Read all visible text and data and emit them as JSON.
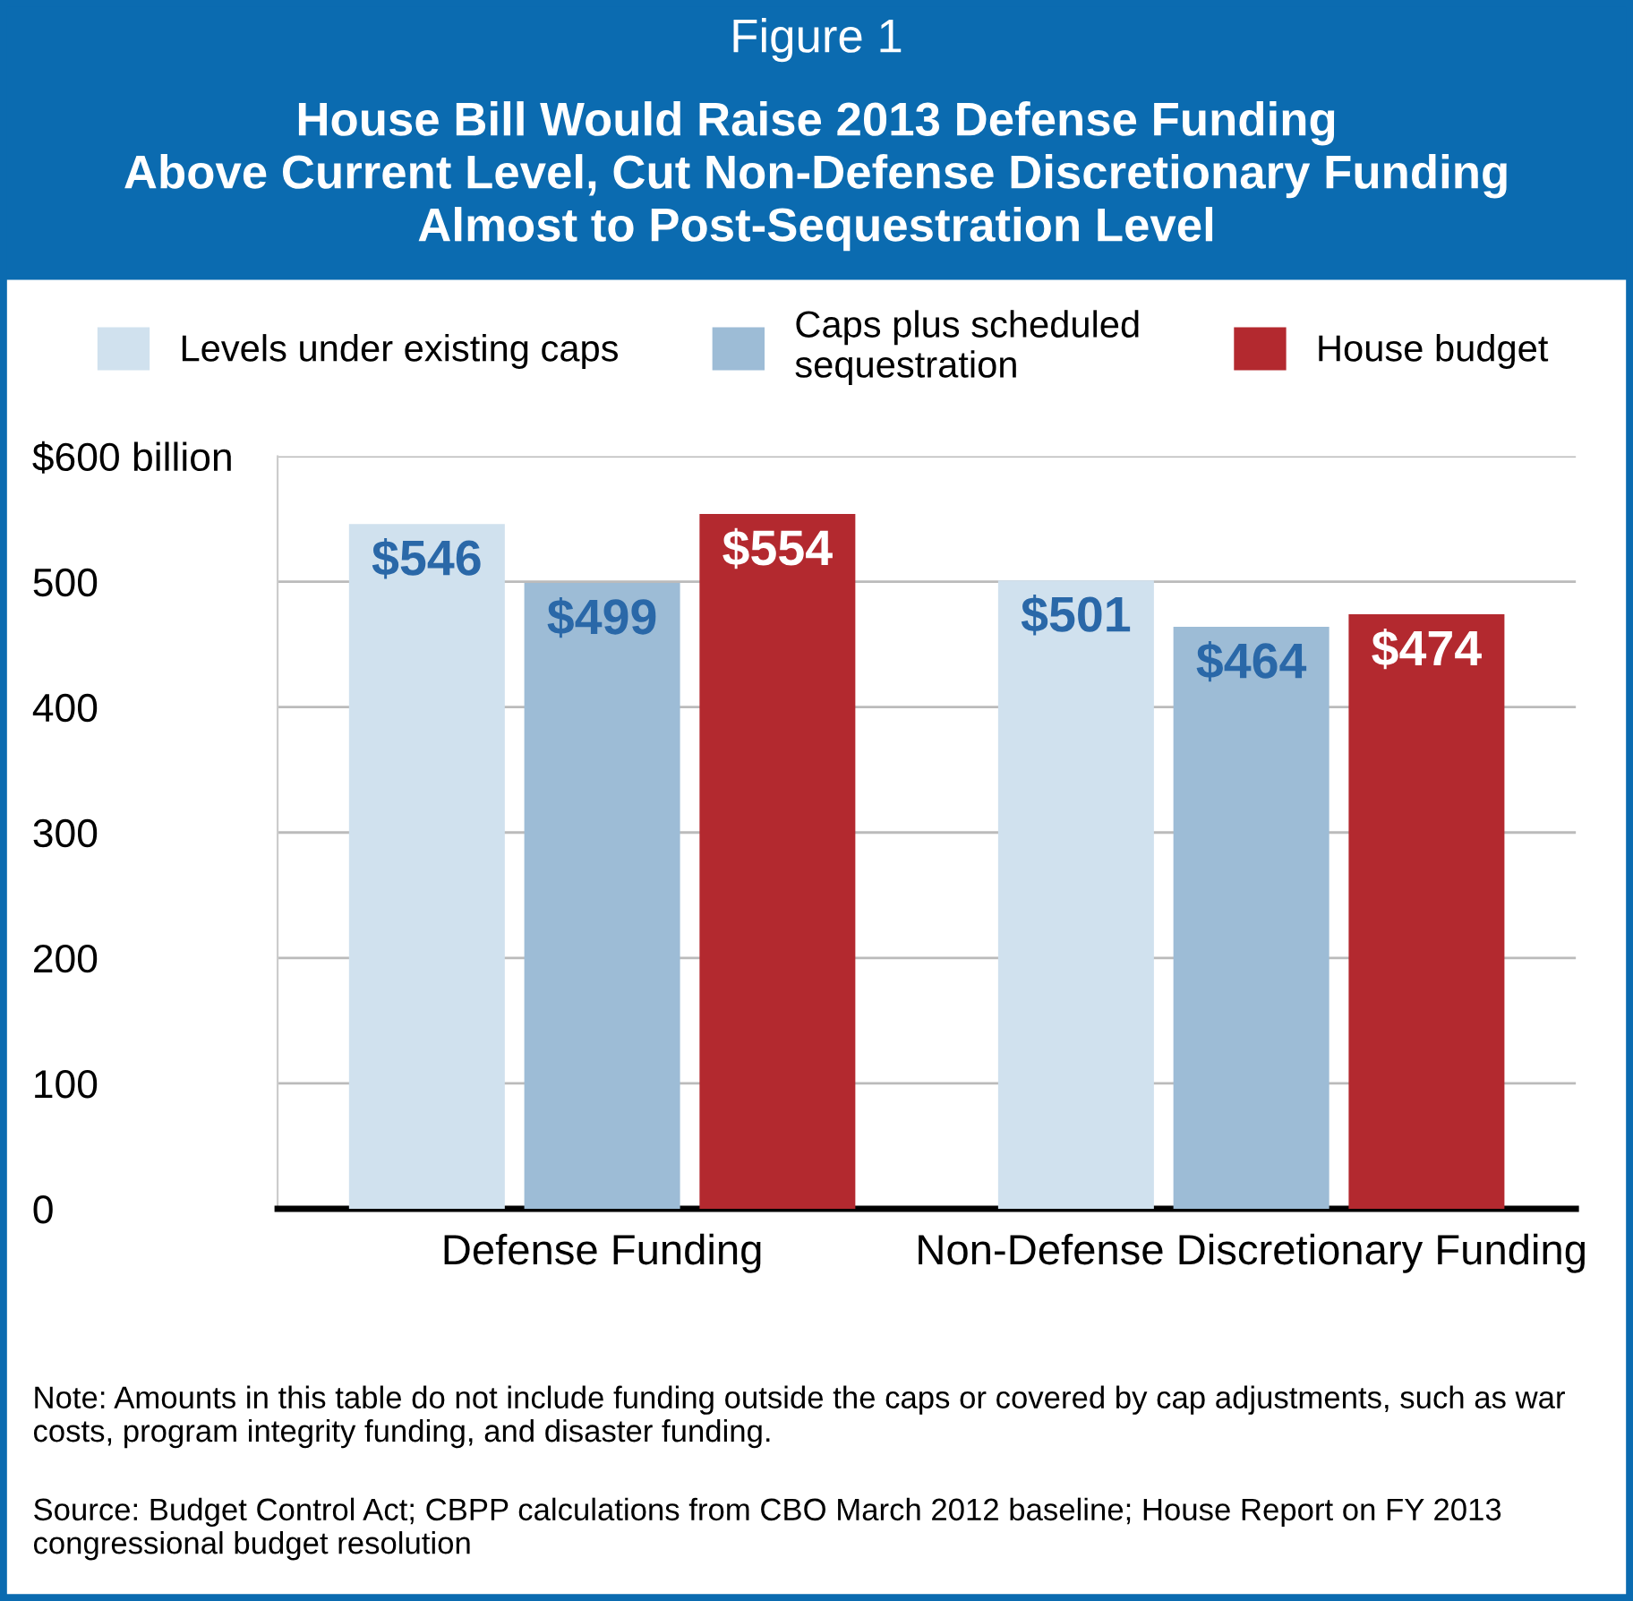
{
  "chart_data": {
    "type": "bar",
    "title": "Figure 1",
    "subtitle": "House Bill Would Raise 2013 Defense Funding\nAbove Current Level, Cut Non-Defense Discretionary Funding\nAlmost to Post-Sequestration Level",
    "categories": [
      "Defense Funding",
      "Non-Defense Discretionary Funding"
    ],
    "series": [
      {
        "name": "Levels under existing caps",
        "color": "#d0e1ee",
        "values": [
          546,
          501
        ],
        "value_labels": [
          "$546",
          "$501"
        ]
      },
      {
        "name": "Caps plus scheduled\nsequestration",
        "color": "#9dbcd6",
        "values": [
          499,
          464
        ],
        "value_labels": [
          "$499",
          "$464"
        ]
      },
      {
        "name": "House budget",
        "color": "#b3292f",
        "values": [
          554,
          474
        ],
        "value_labels": [
          "$554",
          "$474"
        ]
      }
    ],
    "ylim": [
      0,
      600
    ],
    "yticks": [
      0,
      100,
      200,
      300,
      400,
      500,
      {
        "value": 600,
        "label": "$600 billion"
      }
    ],
    "grid": "y",
    "legend": "top",
    "annotations": [
      "Note: Amounts in this table do not include funding outside the caps or covered by cap adjustments, such as war costs, program integrity funding, and disaster funding.",
      "Source: Budget Control Act; CBPP calculations from CBO March 2012 baseline; House Report on FY 2013 congressional budget resolution"
    ]
  }
}
